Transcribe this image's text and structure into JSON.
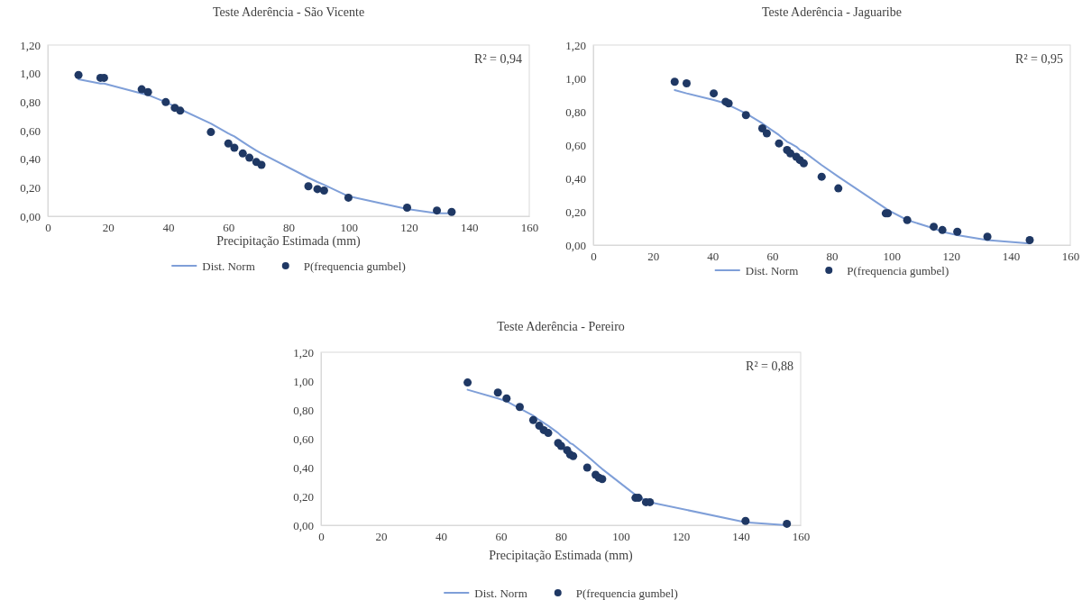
{
  "chart_data": [
    {
      "type": "scatter",
      "title": "Teste Aderência - São Vicente",
      "xlabel": "Precipitação Estimada (mm)",
      "annotations": [
        "R² = 0,94"
      ],
      "legend": "bottom",
      "grid": false,
      "xlim": [
        0,
        160
      ],
      "xticks": [
        0,
        20,
        40,
        60,
        80,
        100,
        120,
        140,
        160
      ],
      "ylim": [
        0,
        1.2
      ],
      "yticks": [
        {
          "value": 0,
          "label": "0,00"
        },
        {
          "value": 0.2,
          "label": "0,20"
        },
        {
          "value": 0.4,
          "label": "0,40"
        },
        {
          "value": 0.6,
          "label": "0,60"
        },
        {
          "value": 0.8,
          "label": "0,80"
        },
        {
          "value": 1,
          "label": "1,00"
        },
        {
          "value": 1.2,
          "label": "1,20"
        }
      ],
      "series": [
        {
          "name": "Dist. Norm",
          "type": "line",
          "marker": "none",
          "line_style": "solid",
          "color": "#7f9fd8",
          "x": [
            10.2,
            17.5,
            18.7,
            31.2,
            33.3,
            39.2,
            42.2,
            44,
            54.2,
            60,
            62,
            64.8,
            67,
            69.3,
            71,
            86.6,
            89.6,
            91.8,
            99.9,
            119.4,
            129.3,
            134.2
          ],
          "values": [
            0.96,
            0.93,
            0.93,
            0.86,
            0.85,
            0.8,
            0.77,
            0.75,
            0.65,
            0.58,
            0.56,
            0.52,
            0.49,
            0.46,
            0.44,
            0.27,
            0.24,
            0.22,
            0.14,
            0.05,
            0.02,
            0.02
          ]
        },
        {
          "name": "P(frequencia gumbel)",
          "type": "scatter",
          "marker": "circle",
          "color": "#1f3864",
          "x": [
            10.2,
            17.5,
            18.7,
            31.2,
            33.3,
            39.2,
            42.2,
            44,
            54.2,
            60,
            62,
            64.8,
            67,
            69.3,
            71,
            86.6,
            89.6,
            91.8,
            99.9,
            119.4,
            129.3,
            134.2
          ],
          "values": [
            0.99,
            0.97,
            0.97,
            0.89,
            0.87,
            0.8,
            0.76,
            0.74,
            0.59,
            0.51,
            0.48,
            0.44,
            0.41,
            0.38,
            0.36,
            0.21,
            0.19,
            0.18,
            0.13,
            0.06,
            0.04,
            0.03
          ]
        }
      ]
    },
    {
      "type": "scatter",
      "title": "Teste Aderência - Jaguaribe",
      "annotations": [
        "R² = 0,95"
      ],
      "legend": "bottom",
      "grid": false,
      "xlim": [
        0,
        160
      ],
      "xticks": [
        0,
        20,
        40,
        60,
        80,
        100,
        120,
        140,
        160
      ],
      "ylim": [
        0,
        1.2
      ],
      "yticks": [
        {
          "value": 0,
          "label": "0,00"
        },
        {
          "value": 0.2,
          "label": "0,20"
        },
        {
          "value": 0.4,
          "label": "0,40"
        },
        {
          "value": 0.6,
          "label": "0,60"
        },
        {
          "value": 0.8,
          "label": "0,80"
        },
        {
          "value": 1,
          "label": "1,00"
        },
        {
          "value": 1.2,
          "label": "1,20"
        }
      ],
      "series": [
        {
          "name": "Dist. Norm",
          "type": "line",
          "marker": "none",
          "line_style": "solid",
          "color": "#7f9fd8",
          "x": [
            27.3,
            31.3,
            40.4,
            44.4,
            45.4,
            51.2,
            56.7,
            58.2,
            62.3,
            65,
            66.1,
            68.1,
            69.3,
            70.6,
            76.6,
            82.2,
            98.1,
            98.8,
            105.3,
            114.2,
            117.1,
            122.1,
            132.2,
            146.4
          ],
          "values": [
            0.93,
            0.91,
            0.87,
            0.85,
            0.84,
            0.79,
            0.73,
            0.71,
            0.66,
            0.62,
            0.61,
            0.59,
            0.57,
            0.56,
            0.48,
            0.41,
            0.22,
            0.21,
            0.15,
            0.1,
            0.08,
            0.06,
            0.03,
            0.01
          ]
        },
        {
          "name": "P(frequencia gumbel)",
          "type": "scatter",
          "marker": "circle",
          "color": "#1f3864",
          "x": [
            27.3,
            31.3,
            40.4,
            44.4,
            45.4,
            51.2,
            56.7,
            58.2,
            62.3,
            65,
            66.1,
            68.1,
            69.3,
            70.6,
            76.6,
            82.2,
            98.1,
            98.8,
            105.3,
            114.2,
            117.1,
            122.1,
            132.2,
            146.4
          ],
          "values": [
            0.98,
            0.97,
            0.91,
            0.86,
            0.85,
            0.78,
            0.7,
            0.67,
            0.61,
            0.57,
            0.55,
            0.53,
            0.51,
            0.49,
            0.41,
            0.34,
            0.19,
            0.19,
            0.15,
            0.11,
            0.09,
            0.08,
            0.05,
            0.03
          ]
        }
      ]
    },
    {
      "type": "scatter",
      "title": "Teste Aderência - Pereiro",
      "xlabel": "Precipitação Estimada (mm)",
      "annotations": [
        "R² = 0,88"
      ],
      "legend": "bottom",
      "grid": false,
      "xlim": [
        0,
        160
      ],
      "xticks": [
        0,
        20,
        40,
        60,
        80,
        100,
        120,
        140,
        160
      ],
      "ylim": [
        0,
        1.2
      ],
      "yticks": [
        {
          "value": 0,
          "label": "0,00"
        },
        {
          "value": 0.2,
          "label": "0,20"
        },
        {
          "value": 0.4,
          "label": "0,40"
        },
        {
          "value": 0.6,
          "label": "0,60"
        },
        {
          "value": 0.8,
          "label": "0,80"
        },
        {
          "value": 1,
          "label": "1,00"
        },
        {
          "value": 1.2,
          "label": "1,20"
        }
      ],
      "series": [
        {
          "name": "Dist. Norm",
          "type": "line",
          "marker": "none",
          "line_style": "solid",
          "color": "#7f9fd8",
          "x": [
            48.9,
            59,
            61.9,
            66.3,
            70.8,
            72.8,
            74.3,
            75.8,
            79.1,
            80.1,
            82.1,
            83.1,
            84.1,
            88.8,
            91.6,
            92.7,
            93.8,
            104.9,
            105.9,
            108.4,
            109.7,
            141.6,
            155.4
          ],
          "values": [
            0.94,
            0.88,
            0.86,
            0.81,
            0.76,
            0.73,
            0.71,
            0.69,
            0.64,
            0.62,
            0.59,
            0.57,
            0.56,
            0.48,
            0.43,
            0.41,
            0.39,
            0.21,
            0.2,
            0.17,
            0.16,
            0.02,
            0
          ]
        },
        {
          "name": "P(frequencia gumbel)",
          "type": "scatter",
          "marker": "circle",
          "color": "#1f3864",
          "x": [
            48.9,
            59,
            61.9,
            66.3,
            70.8,
            72.8,
            74.3,
            75.8,
            79.1,
            80.1,
            82.1,
            83.1,
            84.1,
            88.8,
            91.6,
            92.7,
            93.8,
            104.9,
            105.9,
            108.4,
            109.7,
            141.6,
            155.4
          ],
          "values": [
            0.99,
            0.92,
            0.88,
            0.82,
            0.73,
            0.69,
            0.66,
            0.64,
            0.57,
            0.55,
            0.52,
            0.49,
            0.48,
            0.4,
            0.35,
            0.33,
            0.32,
            0.19,
            0.19,
            0.16,
            0.16,
            0.03,
            0.01
          ]
        }
      ]
    }
  ]
}
